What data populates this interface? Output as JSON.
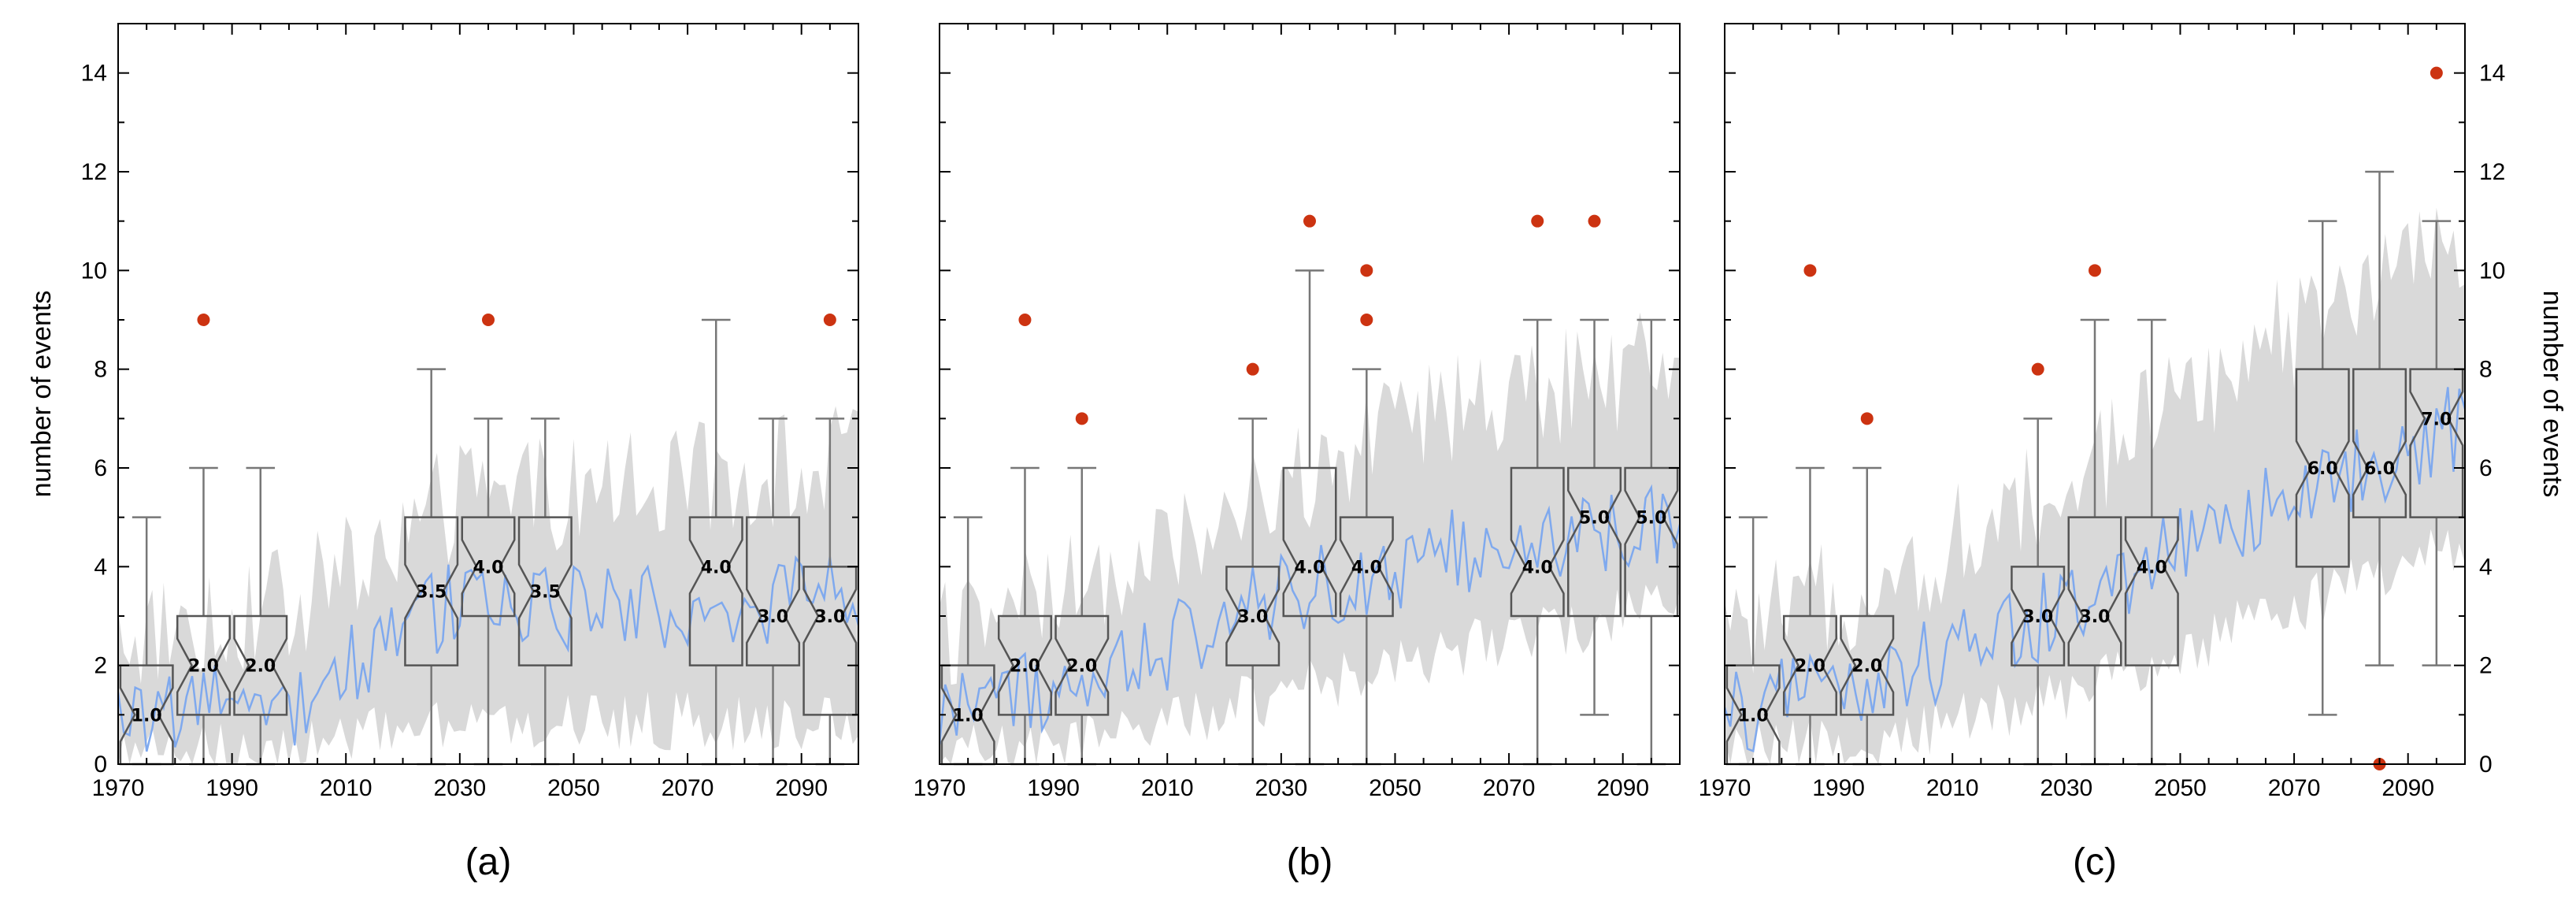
{
  "chart_data": [
    {
      "type": "box+line",
      "panel_label": "(a)",
      "ylabel": "number of events",
      "ylabel_side": "left",
      "xlim": [
        1970,
        2100
      ],
      "ylim": [
        0,
        15
      ],
      "xticks": [
        1970,
        1990,
        2010,
        2030,
        2050,
        2070,
        2090
      ],
      "yticks": [
        0,
        2,
        4,
        6,
        8,
        10,
        12,
        14
      ],
      "series_trend": [
        [
          1970,
          1.0
        ],
        [
          2000,
          1.2
        ],
        [
          2020,
          2.7
        ],
        [
          2030,
          3.4
        ],
        [
          2060,
          3.1
        ],
        [
          2100,
          3.4
        ]
      ],
      "band_low_trend": [
        [
          1970,
          0.2
        ],
        [
          2000,
          0.3
        ],
        [
          2030,
          0.8
        ],
        [
          2060,
          0.9
        ],
        [
          2100,
          0.8
        ]
      ],
      "band_high_trend": [
        [
          1970,
          2.6
        ],
        [
          2000,
          3.2
        ],
        [
          2030,
          5.4
        ],
        [
          2060,
          5.6
        ],
        [
          2100,
          6.2
        ]
      ],
      "boxes": [
        {
          "center": 1975,
          "q1": 0,
          "q3": 2,
          "median": 1.0,
          "whisker_low": 0,
          "whisker_high": 5,
          "label": "1.0"
        },
        {
          "center": 1985,
          "q1": 1,
          "q3": 3,
          "median": 2.0,
          "whisker_low": 0,
          "whisker_high": 6,
          "label": "2.0"
        },
        {
          "center": 1995,
          "q1": 1,
          "q3": 3,
          "median": 2.0,
          "whisker_low": 0,
          "whisker_high": 6,
          "label": "2.0"
        },
        {
          "center": 2025,
          "q1": 2,
          "q3": 5,
          "median": 3.5,
          "whisker_low": 0,
          "whisker_high": 8,
          "label": "3.5"
        },
        {
          "center": 2035,
          "q1": 3,
          "q3": 5,
          "median": 4.0,
          "whisker_low": 0,
          "whisker_high": 7,
          "label": "4.0"
        },
        {
          "center": 2045,
          "q1": 2,
          "q3": 5,
          "median": 3.5,
          "whisker_low": 0,
          "whisker_high": 7,
          "label": "3.5"
        },
        {
          "center": 2075,
          "q1": 2,
          "q3": 5,
          "median": 4.0,
          "whisker_low": 0,
          "whisker_high": 9,
          "label": "4.0"
        },
        {
          "center": 2085,
          "q1": 2,
          "q3": 5,
          "median": 3.0,
          "whisker_low": 0,
          "whisker_high": 7,
          "label": "3.0"
        },
        {
          "center": 2095,
          "q1": 1,
          "q3": 4,
          "median": 3.0,
          "whisker_low": 0,
          "whisker_high": 7,
          "label": "3.0"
        }
      ],
      "outliers": [
        [
          1985,
          9
        ],
        [
          2035,
          9
        ],
        [
          2095,
          9
        ]
      ]
    },
    {
      "type": "box+line",
      "panel_label": "(b)",
      "ylabel": "",
      "ylabel_side": "none",
      "xlim": [
        1970,
        2100
      ],
      "ylim": [
        0,
        15
      ],
      "xticks": [
        1970,
        1990,
        2010,
        2030,
        2050,
        2070,
        2090
      ],
      "yticks": [],
      "series_trend": [
        [
          1970,
          1.0
        ],
        [
          2000,
          1.8
        ],
        [
          2030,
          3.4
        ],
        [
          2060,
          4.3
        ],
        [
          2100,
          5.0
        ]
      ],
      "band_low_trend": [
        [
          1970,
          0.2
        ],
        [
          2000,
          0.5
        ],
        [
          2030,
          1.4
        ],
        [
          2060,
          2.3
        ],
        [
          2100,
          3.2
        ]
      ],
      "band_high_trend": [
        [
          1970,
          2.6
        ],
        [
          2000,
          3.8
        ],
        [
          2030,
          5.6
        ],
        [
          2060,
          7.2
        ],
        [
          2100,
          8.2
        ]
      ],
      "boxes": [
        {
          "center": 1975,
          "q1": 0,
          "q3": 2,
          "median": 1.0,
          "whisker_low": 0,
          "whisker_high": 5,
          "label": "1.0"
        },
        {
          "center": 1985,
          "q1": 1,
          "q3": 3,
          "median": 2.0,
          "whisker_low": 0,
          "whisker_high": 6,
          "label": "2.0"
        },
        {
          "center": 1995,
          "q1": 1,
          "q3": 3,
          "median": 2.0,
          "whisker_low": 0,
          "whisker_high": 6,
          "label": "2.0"
        },
        {
          "center": 2025,
          "q1": 2,
          "q3": 4,
          "median": 3.0,
          "whisker_low": 0,
          "whisker_high": 7,
          "label": "3.0"
        },
        {
          "center": 2035,
          "q1": 3,
          "q3": 6,
          "median": 4.0,
          "whisker_low": 0,
          "whisker_high": 10,
          "label": "4.0"
        },
        {
          "center": 2045,
          "q1": 3,
          "q3": 5,
          "median": 4.0,
          "whisker_low": 0,
          "whisker_high": 8,
          "label": "4.0"
        },
        {
          "center": 2075,
          "q1": 3,
          "q3": 6,
          "median": 4.0,
          "whisker_low": 0,
          "whisker_high": 9,
          "label": "4.0"
        },
        {
          "center": 2085,
          "q1": 3,
          "q3": 6,
          "median": 5.0,
          "whisker_low": 1,
          "whisker_high": 9,
          "label": "5.0"
        },
        {
          "center": 2095,
          "q1": 3,
          "q3": 6,
          "median": 5.0,
          "whisker_low": 0,
          "whisker_high": 9,
          "label": "5.0"
        }
      ],
      "outliers": [
        [
          1985,
          9
        ],
        [
          1995,
          7
        ],
        [
          2025,
          8
        ],
        [
          2035,
          11
        ],
        [
          2045,
          10
        ],
        [
          2045,
          9
        ],
        [
          2075,
          11
        ],
        [
          2085,
          11
        ]
      ]
    },
    {
      "type": "box+line",
      "panel_label": "(c)",
      "ylabel": "number of events",
      "ylabel_side": "right",
      "xlim": [
        1970,
        2100
      ],
      "ylim": [
        0,
        15
      ],
      "xticks": [
        1970,
        1990,
        2010,
        2030,
        2050,
        2070,
        2090
      ],
      "yticks": [
        0,
        2,
        4,
        6,
        8,
        10,
        12,
        14
      ],
      "series_trend": [
        [
          1970,
          1.0
        ],
        [
          2000,
          1.8
        ],
        [
          2030,
          3.2
        ],
        [
          2060,
          5.0
        ],
        [
          2100,
          6.9
        ]
      ],
      "band_low_trend": [
        [
          1970,
          0.2
        ],
        [
          2000,
          0.5
        ],
        [
          2030,
          1.4
        ],
        [
          2060,
          2.8
        ],
        [
          2100,
          4.4
        ]
      ],
      "band_high_trend": [
        [
          1970,
          2.6
        ],
        [
          2000,
          3.8
        ],
        [
          2030,
          5.8
        ],
        [
          2060,
          8.2
        ],
        [
          2100,
          10.6
        ]
      ],
      "boxes": [
        {
          "center": 1975,
          "q1": 0,
          "q3": 2,
          "median": 1.0,
          "whisker_low": 0,
          "whisker_high": 5,
          "label": "1.0"
        },
        {
          "center": 1985,
          "q1": 1,
          "q3": 3,
          "median": 2.0,
          "whisker_low": 0,
          "whisker_high": 6,
          "label": "2.0"
        },
        {
          "center": 1995,
          "q1": 1,
          "q3": 3,
          "median": 2.0,
          "whisker_low": 0,
          "whisker_high": 6,
          "label": "2.0"
        },
        {
          "center": 2025,
          "q1": 2,
          "q3": 4,
          "median": 3.0,
          "whisker_low": 0,
          "whisker_high": 7,
          "label": "3.0"
        },
        {
          "center": 2035,
          "q1": 2,
          "q3": 5,
          "median": 3.0,
          "whisker_low": 0,
          "whisker_high": 9,
          "label": "3.0"
        },
        {
          "center": 2045,
          "q1": 2,
          "q3": 5,
          "median": 4.0,
          "whisker_low": 0,
          "whisker_high": 9,
          "label": "4.0"
        },
        {
          "center": 2075,
          "q1": 4,
          "q3": 8,
          "median": 6.0,
          "whisker_low": 1,
          "whisker_high": 11,
          "label": "6.0"
        },
        {
          "center": 2085,
          "q1": 5,
          "q3": 8,
          "median": 6.0,
          "whisker_low": 2,
          "whisker_high": 12,
          "label": "6.0"
        },
        {
          "center": 2095,
          "q1": 5,
          "q3": 8,
          "median": 7.0,
          "whisker_low": 2,
          "whisker_high": 11,
          "label": "7.0"
        }
      ],
      "outliers": [
        [
          1985,
          10
        ],
        [
          1995,
          7
        ],
        [
          2025,
          8
        ],
        [
          2035,
          10
        ],
        [
          2085,
          0
        ],
        [
          2095,
          14
        ]
      ]
    }
  ],
  "colors": {
    "series_line": "#7fa9ee",
    "band_fill": "#d9d9d9",
    "box_stroke": "#555555",
    "whisker": "#777777",
    "outlier": "#cc3311",
    "axis": "#000000"
  }
}
